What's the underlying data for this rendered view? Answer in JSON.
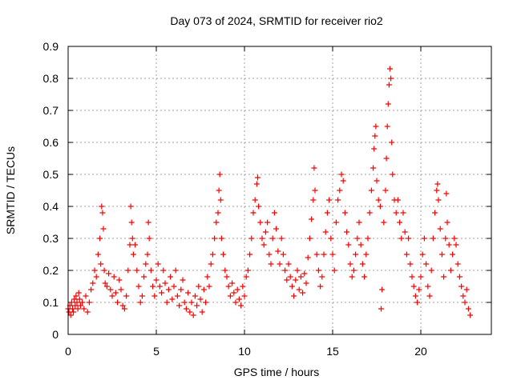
{
  "chart_data": {
    "type": "scatter",
    "title": "Day 073 of 2024, SRMTID for receiver rio2",
    "xlabel": "GPS time / hours",
    "ylabel": "SRMTID / TECUs",
    "xlim": [
      0,
      24
    ],
    "ylim": [
      0,
      0.9
    ],
    "grid": true,
    "marker": "+",
    "marker_color": "#ff0000",
    "x_ticks": [
      0,
      5,
      10,
      15,
      20
    ],
    "x_tick_labels": [
      "0",
      "5",
      "10",
      "15",
      "20"
    ],
    "y_ticks": [
      0,
      0.1,
      0.2,
      0.3,
      0.4,
      0.5,
      0.6,
      0.7,
      0.8,
      0.9
    ],
    "y_tick_labels": [
      "0",
      "0.1",
      "0.2",
      "0.3",
      "0.4",
      "0.5",
      "0.6",
      "0.7",
      "0.8",
      "0.9"
    ],
    "series": [
      {
        "name": "SRMTID",
        "points": [
          [
            0.0,
            0.08
          ],
          [
            0.05,
            0.07
          ],
          [
            0.1,
            0.09
          ],
          [
            0.15,
            0.06
          ],
          [
            0.2,
            0.1
          ],
          [
            0.25,
            0.08
          ],
          [
            0.3,
            0.07
          ],
          [
            0.35,
            0.11
          ],
          [
            0.4,
            0.09
          ],
          [
            0.45,
            0.12
          ],
          [
            0.5,
            0.1
          ],
          [
            0.55,
            0.08
          ],
          [
            0.6,
            0.13
          ],
          [
            0.65,
            0.11
          ],
          [
            0.7,
            0.09
          ],
          [
            0.8,
            0.1
          ],
          [
            0.9,
            0.08
          ],
          [
            1.0,
            0.12
          ],
          [
            1.1,
            0.07
          ],
          [
            1.2,
            0.1
          ],
          [
            1.3,
            0.14
          ],
          [
            1.4,
            0.16
          ],
          [
            1.5,
            0.2
          ],
          [
            1.6,
            0.18
          ],
          [
            1.7,
            0.25
          ],
          [
            1.8,
            0.3
          ],
          [
            1.85,
            0.22
          ],
          [
            1.9,
            0.4
          ],
          [
            1.95,
            0.38
          ],
          [
            2.0,
            0.33
          ],
          [
            2.05,
            0.2
          ],
          [
            2.1,
            0.16
          ],
          [
            2.2,
            0.15
          ],
          [
            2.3,
            0.19
          ],
          [
            2.4,
            0.14
          ],
          [
            2.5,
            0.12
          ],
          [
            2.6,
            0.18
          ],
          [
            2.7,
            0.13
          ],
          [
            2.8,
            0.1
          ],
          [
            2.9,
            0.17
          ],
          [
            3.0,
            0.14
          ],
          [
            3.1,
            0.09
          ],
          [
            3.2,
            0.08
          ],
          [
            3.3,
            0.12
          ],
          [
            3.4,
            0.2
          ],
          [
            3.5,
            0.28
          ],
          [
            3.55,
            0.4
          ],
          [
            3.6,
            0.35
          ],
          [
            3.65,
            0.3
          ],
          [
            3.7,
            0.25
          ],
          [
            3.8,
            0.28
          ],
          [
            3.9,
            0.2
          ],
          [
            4.0,
            0.15
          ],
          [
            4.1,
            0.1
          ],
          [
            4.2,
            0.12
          ],
          [
            4.3,
            0.18
          ],
          [
            4.4,
            0.22
          ],
          [
            4.5,
            0.25
          ],
          [
            4.55,
            0.35
          ],
          [
            4.6,
            0.3
          ],
          [
            4.7,
            0.2
          ],
          [
            4.8,
            0.15
          ],
          [
            4.9,
            0.12
          ],
          [
            5.0,
            0.17
          ],
          [
            5.1,
            0.22
          ],
          [
            5.2,
            0.15
          ],
          [
            5.3,
            0.13
          ],
          [
            5.4,
            0.2
          ],
          [
            5.5,
            0.16
          ],
          [
            5.6,
            0.1
          ],
          [
            5.7,
            0.14
          ],
          [
            5.8,
            0.18
          ],
          [
            5.9,
            0.11
          ],
          [
            6.0,
            0.15
          ],
          [
            6.1,
            0.2
          ],
          [
            6.2,
            0.12
          ],
          [
            6.3,
            0.09
          ],
          [
            6.4,
            0.14
          ],
          [
            6.5,
            0.17
          ],
          [
            6.6,
            0.1
          ],
          [
            6.7,
            0.08
          ],
          [
            6.8,
            0.13
          ],
          [
            6.9,
            0.07
          ],
          [
            7.0,
            0.1
          ],
          [
            7.1,
            0.06
          ],
          [
            7.2,
            0.12
          ],
          [
            7.3,
            0.09
          ],
          [
            7.4,
            0.15
          ],
          [
            7.5,
            0.11
          ],
          [
            7.6,
            0.07
          ],
          [
            7.7,
            0.14
          ],
          [
            7.8,
            0.1
          ],
          [
            7.9,
            0.18
          ],
          [
            8.0,
            0.15
          ],
          [
            8.1,
            0.22
          ],
          [
            8.2,
            0.25
          ],
          [
            8.3,
            0.3
          ],
          [
            8.4,
            0.35
          ],
          [
            8.5,
            0.38
          ],
          [
            8.55,
            0.45
          ],
          [
            8.6,
            0.5
          ],
          [
            8.65,
            0.42
          ],
          [
            8.7,
            0.3
          ],
          [
            8.8,
            0.25
          ],
          [
            8.9,
            0.2
          ],
          [
            9.0,
            0.18
          ],
          [
            9.1,
            0.15
          ],
          [
            9.2,
            0.12
          ],
          [
            9.3,
            0.16
          ],
          [
            9.4,
            0.13
          ],
          [
            9.5,
            0.1
          ],
          [
            9.6,
            0.14
          ],
          [
            9.7,
            0.11
          ],
          [
            9.8,
            0.09
          ],
          [
            9.9,
            0.15
          ],
          [
            10.0,
            0.12
          ],
          [
            10.1,
            0.18
          ],
          [
            10.2,
            0.2
          ],
          [
            10.3,
            0.25
          ],
          [
            10.4,
            0.3
          ],
          [
            10.5,
            0.38
          ],
          [
            10.6,
            0.42
          ],
          [
            10.7,
            0.47
          ],
          [
            10.75,
            0.49
          ],
          [
            10.8,
            0.4
          ],
          [
            10.9,
            0.35
          ],
          [
            11.0,
            0.3
          ],
          [
            11.1,
            0.28
          ],
          [
            11.2,
            0.32
          ],
          [
            11.3,
            0.35
          ],
          [
            11.4,
            0.25
          ],
          [
            11.5,
            0.22
          ],
          [
            11.6,
            0.3
          ],
          [
            11.7,
            0.38
          ],
          [
            11.8,
            0.33
          ],
          [
            11.9,
            0.26
          ],
          [
            12.0,
            0.22
          ],
          [
            12.1,
            0.3
          ],
          [
            12.2,
            0.25
          ],
          [
            12.3,
            0.2
          ],
          [
            12.4,
            0.17
          ],
          [
            12.5,
            0.22
          ],
          [
            12.6,
            0.18
          ],
          [
            12.7,
            0.15
          ],
          [
            12.8,
            0.12
          ],
          [
            12.9,
            0.17
          ],
          [
            13.0,
            0.2
          ],
          [
            13.1,
            0.14
          ],
          [
            13.2,
            0.18
          ],
          [
            13.3,
            0.13
          ],
          [
            13.4,
            0.19
          ],
          [
            13.5,
            0.16
          ],
          [
            13.6,
            0.24
          ],
          [
            13.7,
            0.3
          ],
          [
            13.8,
            0.36
          ],
          [
            13.9,
            0.42
          ],
          [
            13.95,
            0.52
          ],
          [
            14.0,
            0.45
          ],
          [
            14.1,
            0.25
          ],
          [
            14.2,
            0.2
          ],
          [
            14.3,
            0.15
          ],
          [
            14.4,
            0.18
          ],
          [
            14.5,
            0.25
          ],
          [
            14.6,
            0.32
          ],
          [
            14.7,
            0.38
          ],
          [
            14.8,
            0.42
          ],
          [
            14.9,
            0.3
          ],
          [
            15.0,
            0.25
          ],
          [
            15.1,
            0.2
          ],
          [
            15.2,
            0.35
          ],
          [
            15.3,
            0.42
          ],
          [
            15.4,
            0.45
          ],
          [
            15.5,
            0.5
          ],
          [
            15.6,
            0.48
          ],
          [
            15.7,
            0.38
          ],
          [
            15.8,
            0.32
          ],
          [
            15.9,
            0.28
          ],
          [
            16.0,
            0.22
          ],
          [
            16.1,
            0.18
          ],
          [
            16.2,
            0.2
          ],
          [
            16.3,
            0.25
          ],
          [
            16.4,
            0.3
          ],
          [
            16.5,
            0.35
          ],
          [
            16.6,
            0.28
          ],
          [
            16.7,
            0.22
          ],
          [
            16.8,
            0.18
          ],
          [
            16.9,
            0.25
          ],
          [
            17.0,
            0.3
          ],
          [
            17.1,
            0.38
          ],
          [
            17.2,
            0.45
          ],
          [
            17.3,
            0.52
          ],
          [
            17.35,
            0.58
          ],
          [
            17.4,
            0.62
          ],
          [
            17.45,
            0.65
          ],
          [
            17.5,
            0.48
          ],
          [
            17.6,
            0.42
          ],
          [
            17.7,
            0.4
          ],
          [
            17.75,
            0.08
          ],
          [
            17.8,
            0.14
          ],
          [
            17.9,
            0.35
          ],
          [
            18.0,
            0.45
          ],
          [
            18.05,
            0.55
          ],
          [
            18.1,
            0.65
          ],
          [
            18.15,
            0.72
          ],
          [
            18.2,
            0.78
          ],
          [
            18.25,
            0.83
          ],
          [
            18.3,
            0.8
          ],
          [
            18.35,
            0.6
          ],
          [
            18.4,
            0.5
          ],
          [
            18.5,
            0.42
          ],
          [
            18.6,
            0.38
          ],
          [
            18.7,
            0.42
          ],
          [
            18.8,
            0.35
          ],
          [
            18.9,
            0.3
          ],
          [
            19.0,
            0.38
          ],
          [
            19.1,
            0.32
          ],
          [
            19.2,
            0.25
          ],
          [
            19.3,
            0.3
          ],
          [
            19.4,
            0.22
          ],
          [
            19.5,
            0.18
          ],
          [
            19.6,
            0.15
          ],
          [
            19.7,
            0.12
          ],
          [
            19.8,
            0.1
          ],
          [
            19.9,
            0.14
          ],
          [
            20.0,
            0.18
          ],
          [
            20.1,
            0.25
          ],
          [
            20.2,
            0.3
          ],
          [
            20.3,
            0.22
          ],
          [
            20.4,
            0.15
          ],
          [
            20.5,
            0.12
          ],
          [
            20.6,
            0.2
          ],
          [
            20.7,
            0.3
          ],
          [
            20.8,
            0.38
          ],
          [
            20.9,
            0.45
          ],
          [
            20.95,
            0.47
          ],
          [
            21.0,
            0.42
          ],
          [
            21.1,
            0.33
          ],
          [
            21.2,
            0.25
          ],
          [
            21.3,
            0.18
          ],
          [
            21.4,
            0.3
          ],
          [
            21.45,
            0.44
          ],
          [
            21.5,
            0.35
          ],
          [
            21.6,
            0.28
          ],
          [
            21.7,
            0.2
          ],
          [
            21.8,
            0.25
          ],
          [
            21.9,
            0.3
          ],
          [
            22.0,
            0.28
          ],
          [
            22.1,
            0.22
          ],
          [
            22.2,
            0.18
          ],
          [
            22.3,
            0.15
          ],
          [
            22.4,
            0.12
          ],
          [
            22.5,
            0.1
          ],
          [
            22.6,
            0.14
          ],
          [
            22.7,
            0.08
          ],
          [
            22.8,
            0.06
          ]
        ]
      }
    ]
  }
}
